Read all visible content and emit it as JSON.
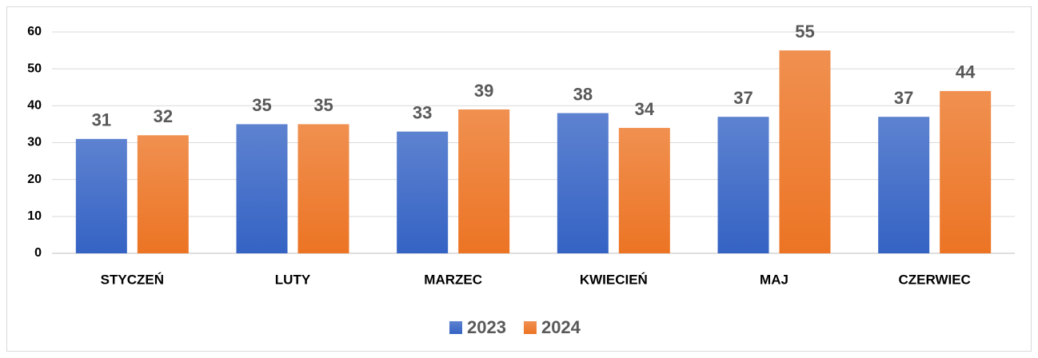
{
  "chart_data": {
    "type": "bar",
    "categories": [
      "STYCZEŃ",
      "LUTY",
      "MARZEC",
      "KWIECIEŃ",
      "MAJ",
      "CZERWIEC"
    ],
    "series": [
      {
        "name": "2023",
        "color": "#3563c4",
        "values": [
          31,
          35,
          33,
          38,
          37,
          37
        ]
      },
      {
        "name": "2024",
        "color": "#ec7424",
        "values": [
          32,
          35,
          39,
          34,
          55,
          44
        ]
      }
    ],
    "ylim": [
      0,
      60
    ],
    "yticks": [
      0,
      10,
      20,
      30,
      40,
      50,
      60
    ],
    "grid": true,
    "legend": "bottom"
  }
}
